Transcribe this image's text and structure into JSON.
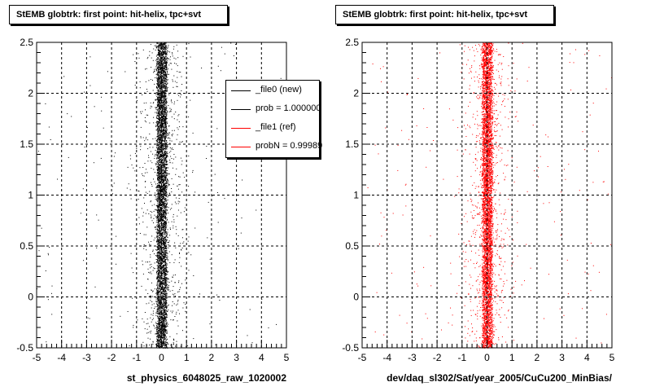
{
  "colors": {
    "new": "#000000",
    "ref": "#ff0000",
    "frame": "#000000"
  },
  "legend": [
    {
      "label": "_file0 (new)",
      "color": "#000000"
    },
    {
      "label": "prob = 1.000000",
      "color": "#000000"
    },
    {
      "label": "_file1 (ref)",
      "color": "#ff0000"
    },
    {
      "label": "probN = 0.99989",
      "color": "#ff0000"
    }
  ],
  "chart_data": [
    {
      "type": "scatter",
      "title": "StEMB globtrk: first point: hit-helix, tpc+svt",
      "xlabel": "st_physics_6048025_raw_1020002",
      "ylabel": "",
      "xlim": [
        -5,
        5
      ],
      "ylim": [
        -0.5,
        2.5
      ],
      "grid": true,
      "legend_position": "top-right",
      "x_ticks": [
        "-5",
        "-4",
        "-3",
        "-2",
        "-1",
        "0",
        "1",
        "2",
        "3",
        "4",
        "5"
      ],
      "y_ticks": [
        "-0.5",
        "0",
        "0.5",
        "1",
        "1.5",
        "2",
        "2.5"
      ],
      "series": [
        {
          "name": "_file0 (new)",
          "color": "#000000",
          "distribution": {
            "x_center": 0.0,
            "x_core_halfwidth": 0.2,
            "y_range": [
              -0.5,
              2.5
            ]
          }
        }
      ]
    },
    {
      "type": "scatter",
      "title": "StEMB globtrk: first point: hit-helix, tpc+svt",
      "xlabel": "dev/daq_sl302/Sat/year_2005/CuCu200_MinBias/",
      "ylabel": "",
      "xlim": [
        -5,
        5
      ],
      "ylim": [
        -0.5,
        2.5
      ],
      "grid": true,
      "x_ticks": [
        "-5",
        "-4",
        "-3",
        "-2",
        "-1",
        "0",
        "1",
        "2",
        "3",
        "4",
        "5"
      ],
      "y_ticks": [
        "-0.5",
        "0",
        "0.5",
        "1",
        "1.5",
        "2",
        "2.5"
      ],
      "series": [
        {
          "name": "_file1 (ref)",
          "color": "#ff0000",
          "distribution": {
            "x_center": 0.0,
            "x_core_halfwidth": 0.2,
            "y_range": [
              -0.5,
              2.5
            ]
          }
        }
      ]
    }
  ]
}
